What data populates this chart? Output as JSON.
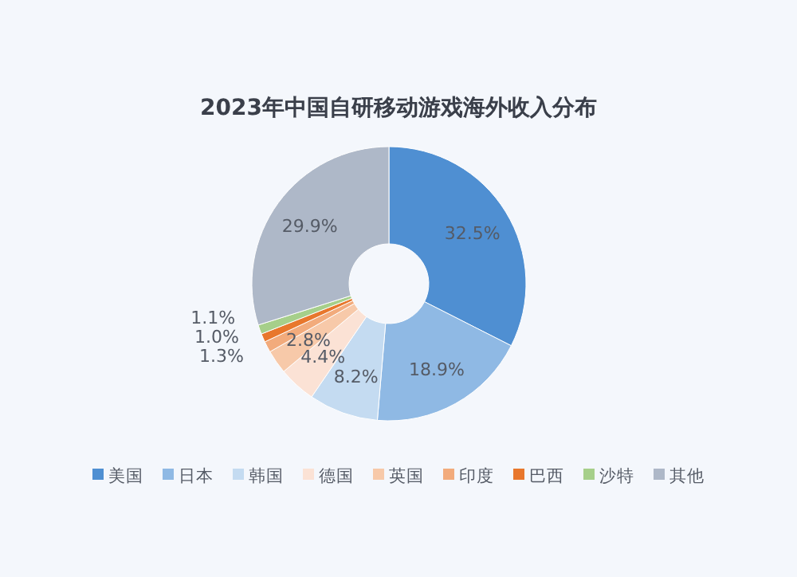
{
  "chart_data": {
    "type": "donut",
    "title": "2023年中国自研移动游戏海外收入分布",
    "categories": [
      "美国",
      "日本",
      "韩国",
      "德国",
      "英国",
      "印度",
      "巴西",
      "沙特",
      "其他"
    ],
    "values": [
      32.5,
      18.9,
      8.2,
      4.4,
      2.8,
      1.3,
      1.0,
      1.1,
      29.9
    ],
    "value_labels": [
      "32.5%",
      "18.9%",
      "8.2%",
      "4.4%",
      "2.8%",
      "1.3%",
      "1.0%",
      "1.1%",
      "29.9%"
    ],
    "colors": [
      "#4f8fd2",
      "#8fb9e4",
      "#c4dbf1",
      "#fbe2d5",
      "#f7c9a9",
      "#f2ab7c",
      "#e8772c",
      "#a6cf8a",
      "#aeb8c8"
    ],
    "legend": "bottom"
  }
}
